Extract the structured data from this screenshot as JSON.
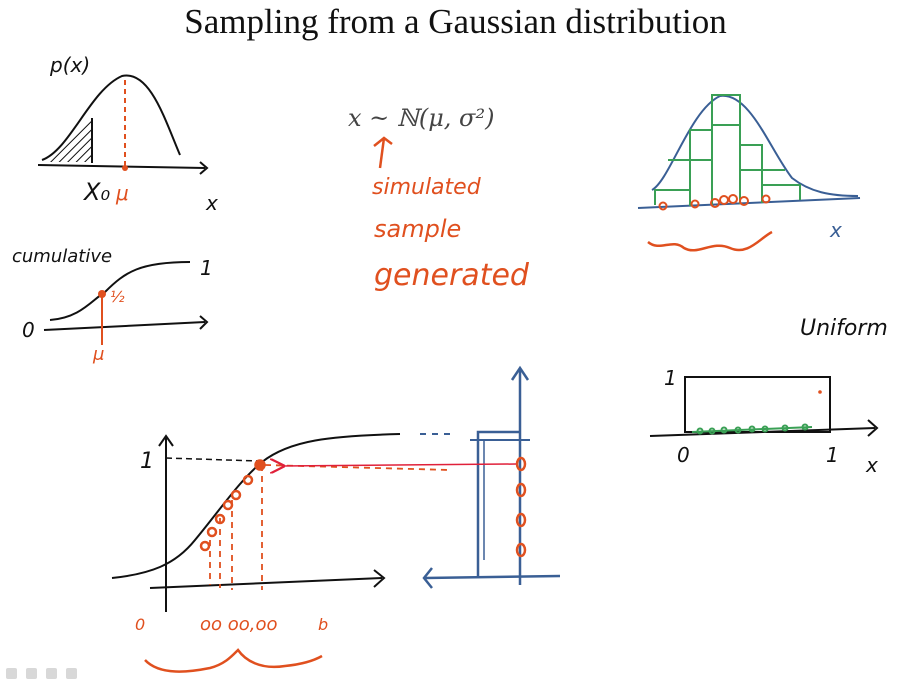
{
  "title": "Sampling from a Gaussian distribution",
  "formula": "x ~ ℕ(μ, σ²)",
  "notes": {
    "simulated": "simulated",
    "sample": "sample",
    "generated": "generated"
  },
  "top_left": {
    "px_label": "p(x)",
    "x0_label": "X₀",
    "mu_label": "μ",
    "x_label": "x"
  },
  "cumulative": {
    "label": "cumulative",
    "one_label": "1",
    "zero_label": "0",
    "half_label": "½",
    "mu_label": "μ"
  },
  "right_hist": {
    "x_label": "x"
  },
  "uniform": {
    "label": "Uniform",
    "one_label": "1",
    "zero_label": "0",
    "x_one_label": "1",
    "x_label": "x"
  },
  "big_plot": {
    "one_label": "1",
    "zero_label": "0",
    "samples_label": "oo oo,oo",
    "end_label": "b"
  },
  "colors": {
    "ink": "#111111",
    "red": "#e0501f",
    "blue": "#3a5f95",
    "green": "#3aa055",
    "arrow": "#e0203a"
  }
}
